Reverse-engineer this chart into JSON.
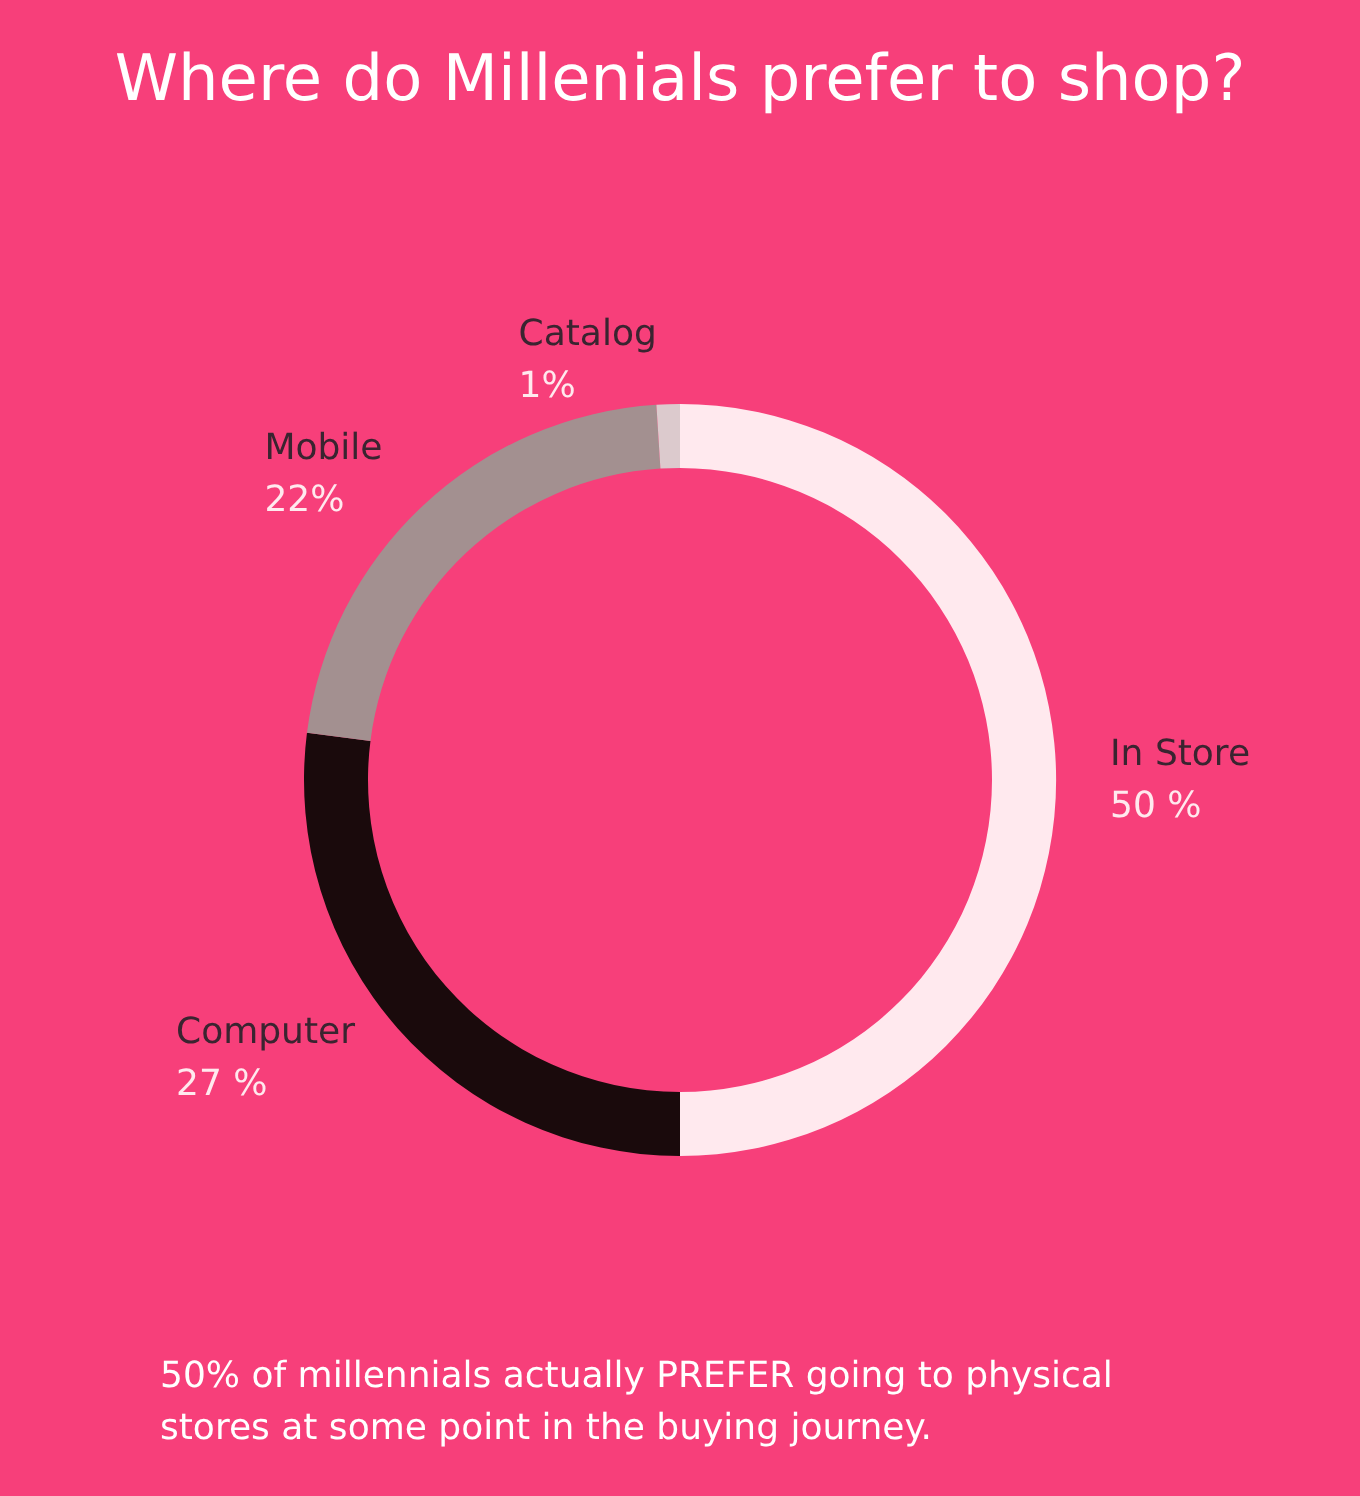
{
  "chart_data": {
    "type": "donut",
    "title": "Where do Millenials prefer to shop?",
    "categories": [
      "In Store",
      "Computer",
      "Mobile",
      "Catalog"
    ],
    "values": [
      50,
      27,
      22,
      1
    ],
    "value_labels": [
      "50 %",
      "27 %",
      "22%",
      "1%"
    ],
    "colors": [
      "#ffe9ee",
      "#1a0a0c",
      "#a39090",
      "#dccacd"
    ],
    "annotations": [
      "50% of millennials actually PREFER going to physical stores at some point in the buying journey."
    ]
  }
}
